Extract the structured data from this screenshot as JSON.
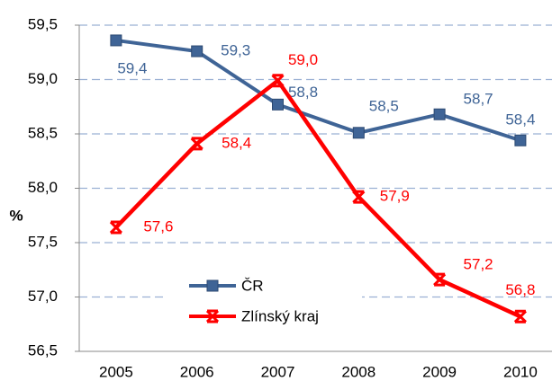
{
  "chart_data": {
    "type": "line",
    "y_label": "%",
    "categories": [
      "2005",
      "2006",
      "2007",
      "2008",
      "2009",
      "2010"
    ],
    "series": [
      {
        "name": "ČR",
        "color": "#3f6496",
        "values": [
          59.36,
          59.26,
          58.77,
          58.51,
          58.68,
          58.44
        ],
        "value_labels": [
          "59,4",
          "59,3",
          "58,8",
          "58,5",
          "58,7",
          "58,4"
        ]
      },
      {
        "name": "Zlínský kraj",
        "color": "#ff0000",
        "values": [
          57.64,
          58.41,
          58.99,
          57.92,
          57.16,
          56.82
        ],
        "value_labels": [
          "57,6",
          "58,4",
          "59,0",
          "57,9",
          "57,2",
          "56,8"
        ]
      }
    ],
    "ylim": [
      56.5,
      59.5
    ],
    "yticks": [
      {
        "value": 56.5,
        "label": "56,5"
      },
      {
        "value": 57.0,
        "label": "57,0"
      },
      {
        "value": 57.5,
        "label": "57,5"
      },
      {
        "value": 58.0,
        "label": "58,0"
      },
      {
        "value": 58.5,
        "label": "58,5"
      },
      {
        "value": 59.0,
        "label": "59,0"
      },
      {
        "value": 59.5,
        "label": "59,5"
      }
    ],
    "grid": true
  }
}
